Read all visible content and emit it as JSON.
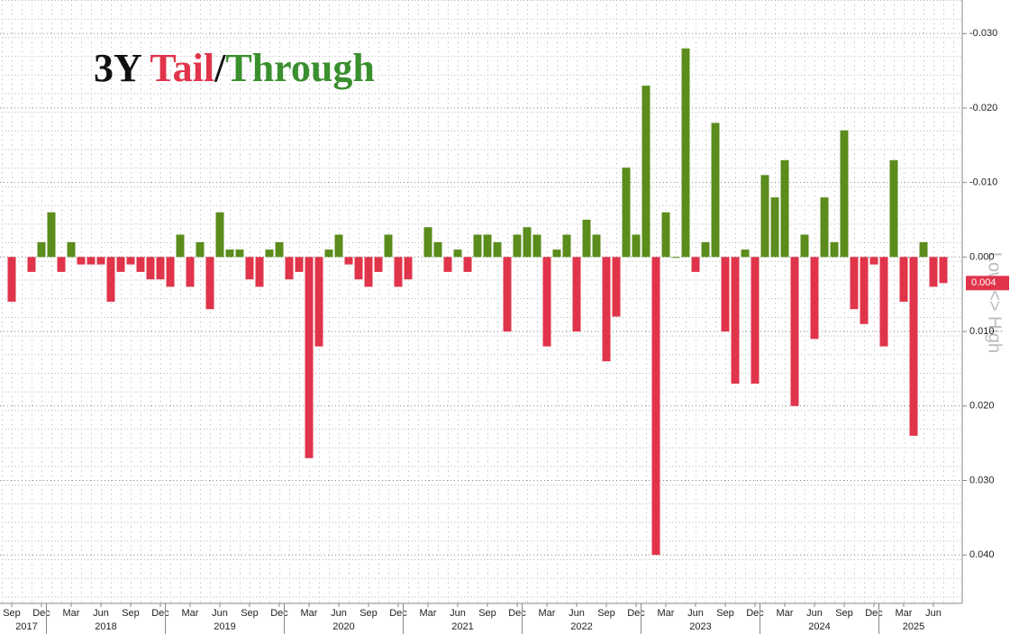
{
  "chart_data": {
    "type": "bar",
    "title_parts": [
      {
        "text": "3Y ",
        "color": "#111111"
      },
      {
        "text": "Tail",
        "color": "#e0344a"
      },
      {
        "text": "/",
        "color": "#111111"
      },
      {
        "text": "Through",
        "color": "#3a8f2e"
      }
    ],
    "y_label": "Low <> High",
    "categories": [
      "Sep",
      null,
      null,
      "Dec",
      null,
      null,
      "Mar",
      null,
      null,
      "Jun",
      null,
      null,
      "Sep",
      null,
      null,
      "Dec",
      null,
      null,
      "Mar",
      null,
      null,
      "Jun",
      null,
      null,
      "Sep",
      null,
      null,
      "Dec",
      null,
      null,
      "Mar",
      null,
      null,
      "Jun",
      null,
      null,
      "Sep",
      null,
      null,
      "Dec",
      null,
      null,
      "Mar",
      null,
      null,
      "Jun",
      null,
      null,
      "Sep",
      null,
      null,
      "Dec",
      null,
      null,
      "Mar",
      null,
      null,
      "Jun",
      null,
      null,
      "Sep",
      null,
      null,
      "Dec",
      null,
      null,
      "Mar",
      null,
      null,
      "Jun",
      null,
      null,
      "Sep",
      null,
      null,
      "Dec",
      null,
      null,
      "Mar",
      null,
      null,
      "Jun",
      null,
      null,
      "Sep",
      null,
      null,
      "Dec",
      null,
      null,
      "Mar",
      null,
      null,
      "Jun",
      null
    ],
    "years": [
      "2017",
      "2018",
      "2019",
      "2020",
      "2021",
      "2022",
      "2023",
      "2024",
      "2025"
    ],
    "values": [
      0.006,
      null,
      0.002,
      -0.002,
      -0.006,
      0.002,
      -0.002,
      0.001,
      0.001,
      0.001,
      0.006,
      0.002,
      0.001,
      0.002,
      0.003,
      0.003,
      0.004,
      -0.003,
      0.004,
      -0.002,
      0.007,
      -0.006,
      -0.001,
      -0.001,
      0.003,
      0.004,
      -0.001,
      -0.002,
      0.003,
      0.002,
      0.027,
      0.012,
      -0.001,
      -0.003,
      0.001,
      0.003,
      0.004,
      0.002,
      -0.003,
      0.004,
      0.003,
      null,
      -0.004,
      -0.002,
      0.002,
      -0.001,
      0.002,
      -0.003,
      -0.003,
      -0.002,
      0.01,
      -0.003,
      -0.004,
      -0.003,
      0.012,
      -0.001,
      -0.003,
      0.01,
      -0.005,
      -0.003,
      0.014,
      0.008,
      -0.012,
      -0.003,
      -0.023,
      0.04,
      -0.006,
      0.0,
      -0.028,
      0.002,
      -0.002,
      -0.018,
      0.01,
      0.017,
      -0.001,
      0.017,
      -0.011,
      -0.008,
      -0.013,
      0.02,
      -0.003,
      0.011,
      -0.008,
      -0.002,
      -0.017,
      0.007,
      0.009,
      0.001,
      0.012,
      -0.013,
      0.006,
      0.024,
      -0.002,
      0.004,
      0.0035
    ],
    "value_labels": [
      null,
      null,
      null,
      null,
      null,
      null,
      null,
      null,
      null,
      null,
      null,
      null,
      null,
      null,
      null,
      null,
      null,
      null,
      null,
      null,
      null,
      null,
      null,
      null,
      null,
      null,
      null,
      null,
      null,
      null,
      null,
      null,
      null,
      null,
      null,
      null,
      null,
      null,
      null,
      null,
      null,
      null,
      null,
      null,
      null,
      null,
      null,
      null,
      null,
      null,
      null,
      null,
      null,
      null,
      null,
      null,
      null,
      null,
      null,
      null,
      null,
      null,
      null,
      null,
      null,
      null,
      null,
      null,
      null,
      null,
      null,
      null,
      null,
      null,
      null,
      null,
      null,
      null,
      null,
      null,
      null,
      null,
      null,
      null,
      null,
      null,
      null,
      null,
      null,
      null,
      null,
      null,
      null,
      null,
      "0.004"
    ],
    "tail_color": "#e0344a",
    "through_color": "#5b8c1c",
    "ylim": [
      -0.0345,
      0.0465
    ],
    "y_inverted": true,
    "yticks": [
      {
        "value": -0.03,
        "label": "-0.030"
      },
      {
        "value": -0.02,
        "label": "-0.020"
      },
      {
        "value": -0.01,
        "label": "-0.010"
      },
      {
        "value": 0,
        "label": "0.000"
      },
      {
        "value": 0.01,
        "label": "0.010"
      },
      {
        "value": 0.02,
        "label": "0.020"
      },
      {
        "value": 0.03,
        "label": "0.030"
      },
      {
        "value": 0.04,
        "label": "0.040"
      }
    ],
    "grid": true
  }
}
